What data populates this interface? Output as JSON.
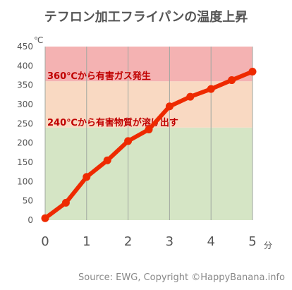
{
  "chart_data": {
    "type": "line",
    "title": "テフロン加工フライパンの温度上昇",
    "y_unit": "℃",
    "x_unit": "分",
    "x_ticks": [
      "0",
      "1",
      "2",
      "3",
      "4",
      "5"
    ],
    "y_ticks": [
      "0",
      "50",
      "100",
      "150",
      "200",
      "250",
      "300",
      "350",
      "400",
      "450"
    ],
    "xlim": [
      0,
      5
    ],
    "ylim": [
      0,
      450
    ],
    "grid": "vertical",
    "series": [
      {
        "x": [
          0,
          0.5,
          1,
          1.5,
          2,
          2.5,
          3,
          3.5,
          4,
          4.5,
          5
        ],
        "y": [
          5,
          45,
          112,
          155,
          205,
          235,
          295,
          320,
          340,
          363,
          385
        ]
      }
    ],
    "bands": [
      {
        "from": 0,
        "to": 240,
        "color": "#d5e5c5"
      },
      {
        "from": 240,
        "to": 360,
        "color": "#f9d9c2"
      },
      {
        "from": 360,
        "to": 450,
        "color": "#f4b2b2"
      }
    ],
    "annotations": [
      {
        "text": "360℃から有害ガス発生",
        "value": 360
      },
      {
        "text": "240℃から有害物質が溶け出す",
        "value": 240
      }
    ],
    "line_color": "#ee2a00"
  },
  "source_text": "Source: EWG, Copyright ©HappyBanana.info"
}
